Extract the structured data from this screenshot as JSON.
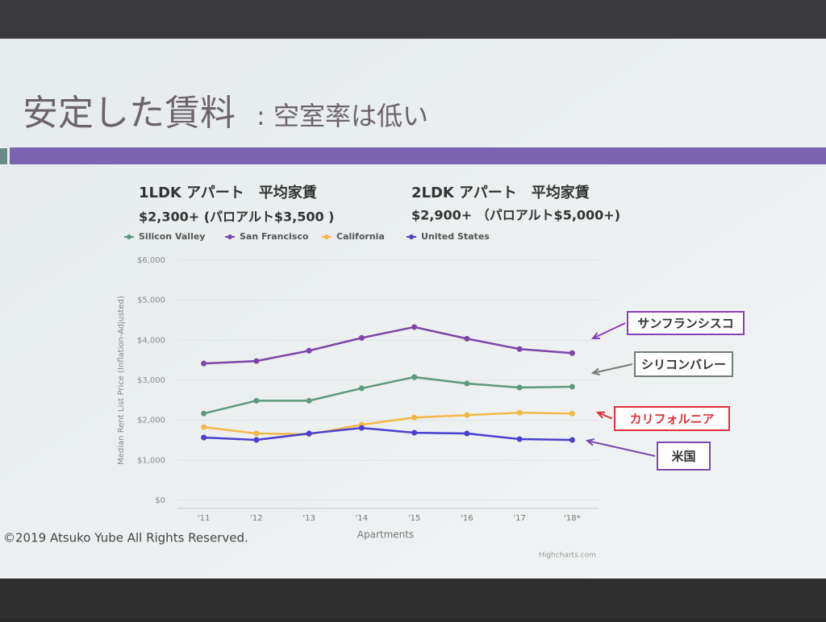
{
  "slide": {
    "title": "安定した賃料",
    "subtitle": ": 空室率は低い",
    "heading_1": "1LDK アパート　平均家賃",
    "price_1": "$2,300+ (パロアルト$3,500 )",
    "heading_2": "2LDK アパート　平均家賃",
    "price_2": "$2,900+ （パロアルト$5,000+)",
    "copyright": "©2019 Atsuko Yube All Rights Reserved."
  },
  "chart_data": {
    "type": "line",
    "categories": [
      "'11",
      "'12",
      "'13",
      "'14",
      "'15",
      "'16",
      "'17",
      "'18*"
    ],
    "series": [
      {
        "name": "Silicon Valley",
        "color": "#5c9a7c",
        "values": [
          2170,
          2490,
          2490,
          2800,
          3080,
          2920,
          2820,
          2840
        ]
      },
      {
        "name": "San Francisco",
        "color": "#7d45a8",
        "values": [
          3420,
          3480,
          3740,
          4060,
          4330,
          4040,
          3780,
          3680
        ]
      },
      {
        "name": "California",
        "color": "#f2b846",
        "values": [
          1830,
          1670,
          1650,
          1890,
          2070,
          2130,
          2190,
          2170
        ]
      },
      {
        "name": "United States",
        "color": "#4b3fcf",
        "values": [
          1570,
          1510,
          1670,
          1810,
          1690,
          1670,
          1530,
          1510
        ]
      }
    ],
    "ylim": [
      0,
      6000
    ],
    "yticks": [
      {
        "value": 0,
        "label": "$0"
      },
      {
        "value": 1000,
        "label": "$1,000"
      },
      {
        "value": 2000,
        "label": "$2,000"
      },
      {
        "value": 3000,
        "label": "$3,000"
      },
      {
        "value": 4000,
        "label": "$4,000"
      },
      {
        "value": 5000,
        "label": "$5,000"
      },
      {
        "value": 6000,
        "label": "$6,000"
      }
    ],
    "ylabel": "Median Rent List Price (Inflation-Adjusted)",
    "xlabel": "Apartments",
    "grid": true,
    "legend": "top",
    "credit": "Highcharts.com",
    "annotations": [
      {
        "text": "サンフランシスコ",
        "color": "#8a3fb8"
      },
      {
        "text": "シリコンバレー",
        "color": "#6f7f74"
      },
      {
        "text": "カリフォルニア",
        "color": "#e0303a"
      },
      {
        "text": "米国",
        "color": "#7a4aa8"
      }
    ]
  }
}
